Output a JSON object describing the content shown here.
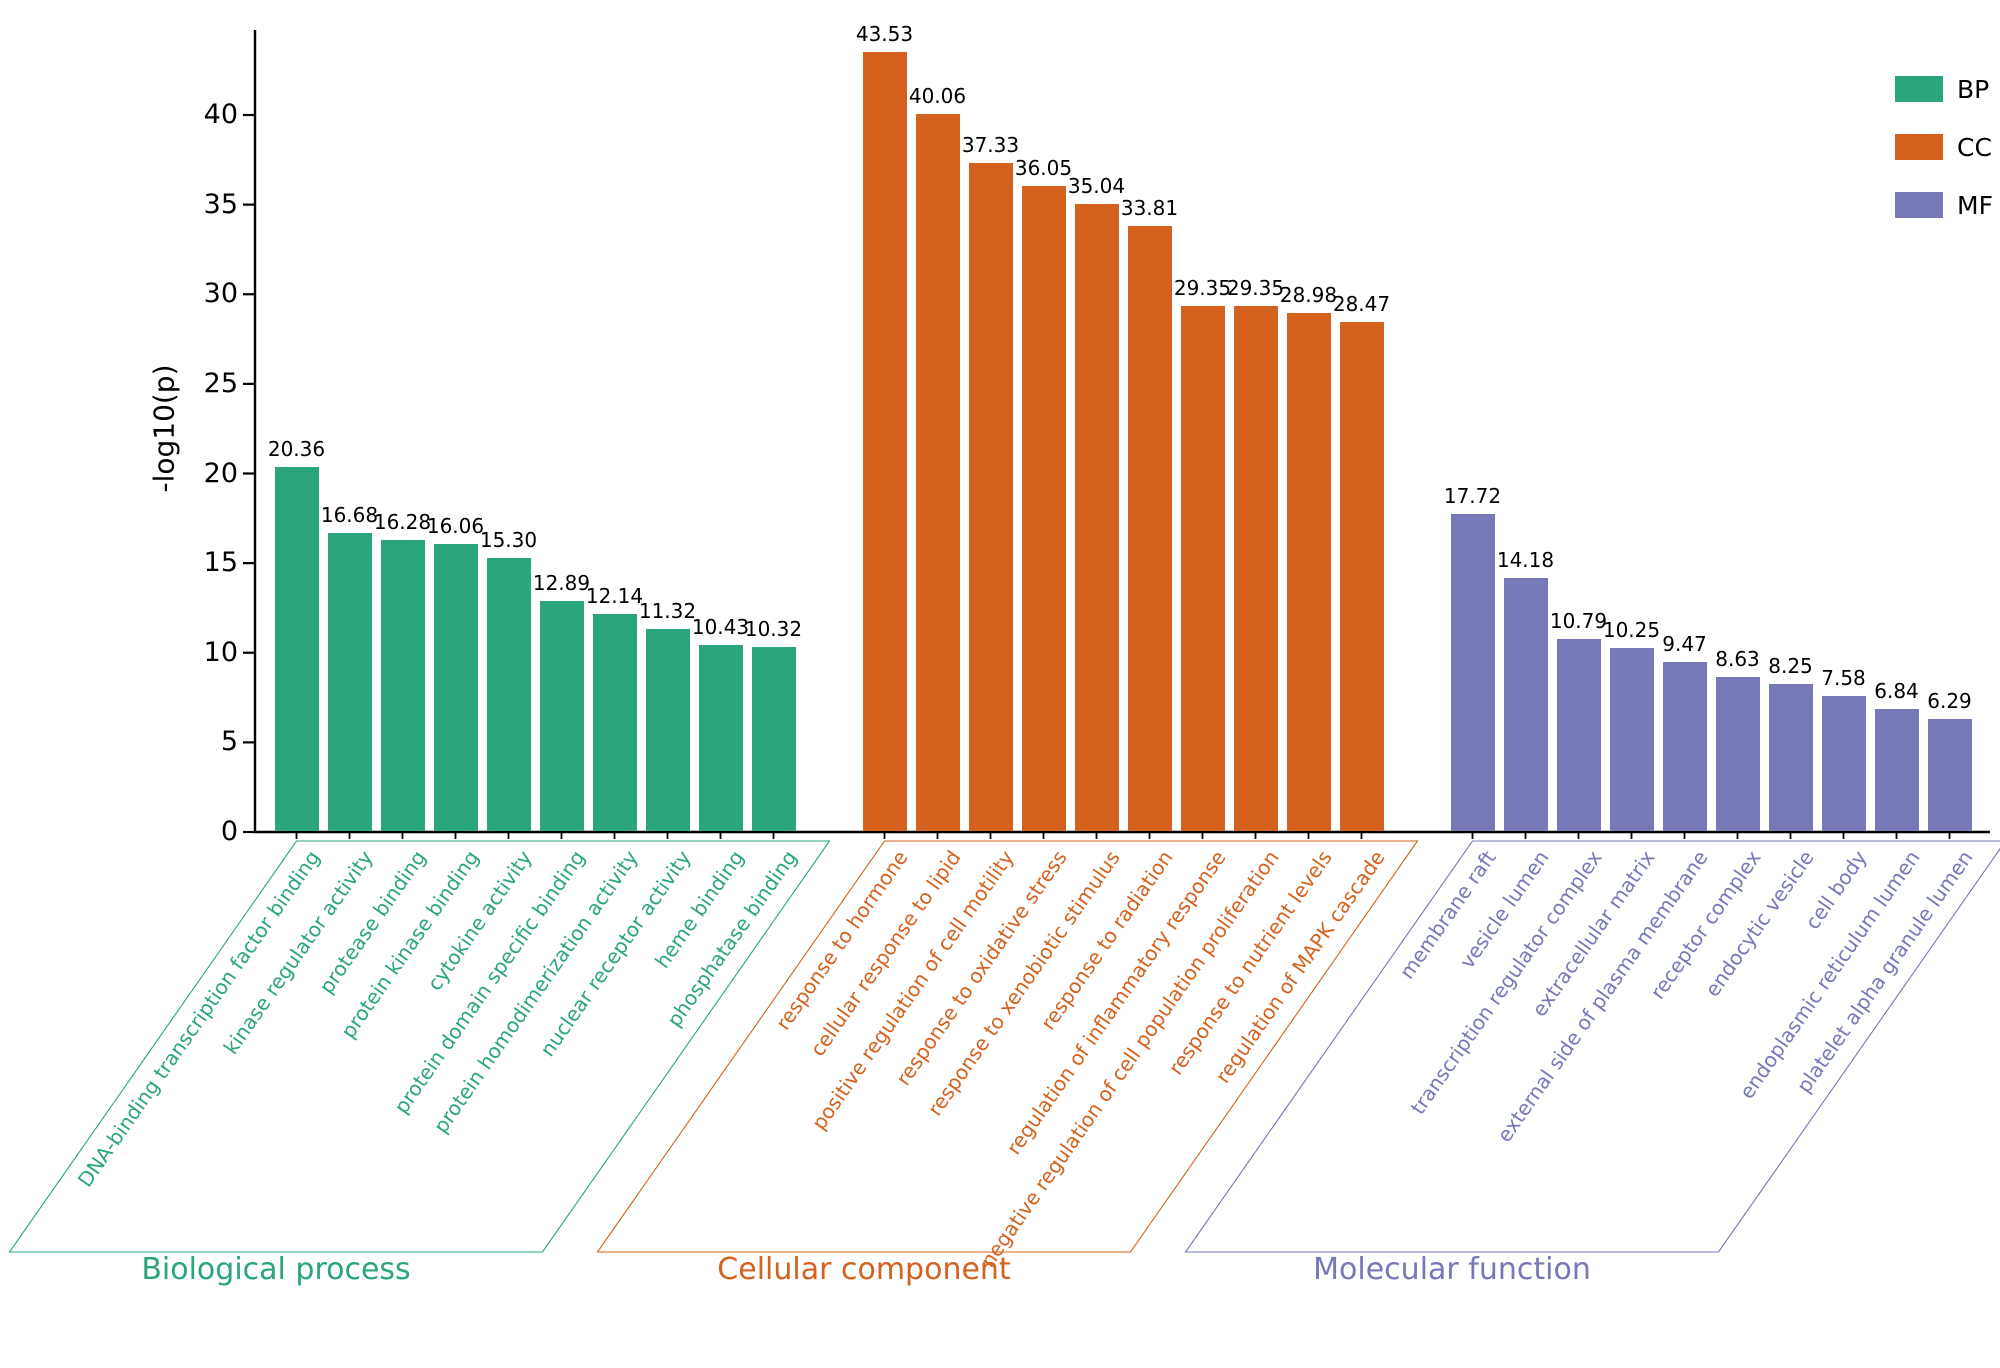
{
  "chart_data": {
    "type": "bar",
    "title": "",
    "ylabel": "-log10(p)",
    "ylim": [
      0,
      44
    ],
    "yticks": [
      0,
      5,
      10,
      15,
      20,
      25,
      30,
      35,
      40
    ],
    "grid": false,
    "legend_position": "top-right",
    "groups": [
      {
        "name": "Biological process",
        "legend": "BP",
        "color": "#2aa57e",
        "categories": [
          "DNA-binding transcription factor binding",
          "kinase regulator activity",
          "protease binding",
          "protein kinase binding",
          "cytokine activity",
          "protein domain specific binding",
          "protein homodimerization activity",
          "nuclear receptor activity",
          "heme binding",
          "phosphatase binding"
        ],
        "values": [
          20.36,
          16.68,
          16.28,
          16.06,
          15.3,
          12.89,
          12.14,
          11.32,
          10.43,
          10.32
        ]
      },
      {
        "name": "Cellular component",
        "legend": "CC",
        "color": "#d4621e",
        "categories": [
          "response to hormone",
          "cellular response to lipid",
          "positive regulation of cell motility",
          "response to oxidative stress",
          "response to xenobiotic stimulus",
          "response to radiation",
          "regulation of inflammatory response",
          "negative regulation of cell population proliferation",
          "response to nutrient levels",
          "regulation of MAPK cascade"
        ],
        "values": [
          43.53,
          40.06,
          37.33,
          36.05,
          35.04,
          33.81,
          29.35,
          29.35,
          28.98,
          28.47
        ]
      },
      {
        "name": "Molecular function",
        "legend": "MF",
        "color": "#7678b8",
        "categories": [
          "membrane raft",
          "vesicle lumen",
          "transcription regulator complex",
          "extracellular matrix",
          "external side of plasma membrane",
          "receptor complex",
          "endocytic vesicle",
          "cell body",
          "endoplasmic reticulum lumen",
          "platelet alpha granule lumen"
        ],
        "values": [
          17.72,
          14.18,
          10.79,
          10.25,
          9.47,
          8.63,
          8.25,
          7.58,
          6.84,
          6.29
        ]
      }
    ],
    "legend": [
      {
        "label": "BP",
        "color": "#2aa57e"
      },
      {
        "label": "CC",
        "color": "#d4621e"
      },
      {
        "label": "MF",
        "color": "#7678b8"
      }
    ]
  }
}
